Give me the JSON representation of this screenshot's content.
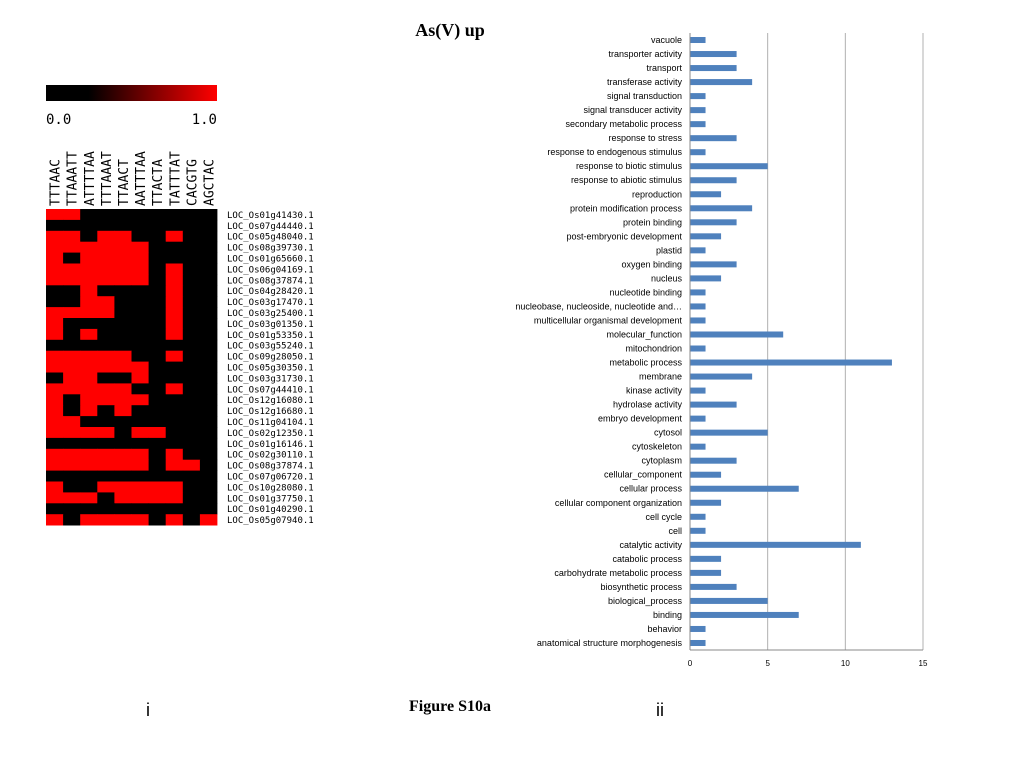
{
  "title": "As(V) up",
  "figure_label": "Figure S10a",
  "panel_labels": {
    "left": "i",
    "right": "ii"
  },
  "colors": {
    "bar": "#4f81bd",
    "high": "#ff0000",
    "low": "#000000",
    "grid": "#b0b0b0"
  },
  "chart_data": [
    {
      "type": "heatmap",
      "scale": {
        "min_label": "0.0",
        "max_label": "1.0",
        "min": 0,
        "max": 1
      },
      "columns": [
        "TTTAAC",
        "TTAAATT",
        "ATTTTAA",
        "TTTAAAT",
        "TTAACT",
        "AATTTAA",
        "TTACTA",
        "TATTTAT",
        "CACGTG",
        "AGCTAC"
      ],
      "rows": [
        "LOC_Os01g41430.1",
        "LOC_Os07g44440.1",
        "LOC_Os05g48040.1",
        "LOC_Os08g39730.1",
        "LOC_Os01g65660.1",
        "LOC_Os06g04169.1",
        "LOC_Os08g37874.1",
        "LOC_Os04g28420.1",
        "LOC_Os03g17470.1",
        "LOC_Os03g25400.1",
        "LOC_Os03g01350.1",
        "LOC_Os01g53350.1",
        "LOC_Os03g55240.1",
        "LOC_Os09g28050.1",
        "LOC_Os05g30350.1",
        "LOC_Os03g31730.1",
        "LOC_Os07g44410.1",
        "LOC_Os12g16080.1",
        "LOC_Os12g16680.1",
        "LOC_Os11g04104.1",
        "LOC_Os02g12350.1",
        "LOC_Os01g16146.1",
        "LOC_Os02g30110.1",
        "LOC_Os08g37874.1",
        "LOC_Os07g06720.1",
        "LOC_Os10g28080.1",
        "LOC_Os01g37750.1",
        "LOC_Os01g40290.1",
        "LOC_Os05g07940.1"
      ],
      "values": [
        [
          1,
          1,
          0,
          0,
          0,
          0,
          0,
          0,
          0,
          0
        ],
        [
          0,
          0,
          0,
          0,
          0,
          0,
          0,
          0,
          0,
          0
        ],
        [
          1,
          1,
          0,
          1,
          1,
          0,
          0,
          1,
          0,
          0
        ],
        [
          1,
          1,
          1,
          1,
          1,
          1,
          0,
          0,
          0,
          0
        ],
        [
          1,
          0,
          1,
          1,
          1,
          1,
          0,
          0,
          0,
          0
        ],
        [
          1,
          1,
          1,
          1,
          1,
          1,
          0,
          1,
          0,
          0
        ],
        [
          1,
          1,
          1,
          1,
          1,
          1,
          0,
          1,
          0,
          0
        ],
        [
          0,
          0,
          1,
          0,
          0,
          0,
          0,
          1,
          0,
          0
        ],
        [
          0,
          0,
          1,
          1,
          0,
          0,
          0,
          1,
          0,
          0
        ],
        [
          1,
          1,
          1,
          1,
          0,
          0,
          0,
          1,
          0,
          0
        ],
        [
          1,
          0,
          0,
          0,
          0,
          0,
          0,
          1,
          0,
          0
        ],
        [
          1,
          0,
          1,
          0,
          0,
          0,
          0,
          1,
          0,
          0
        ],
        [
          0,
          0,
          0,
          0,
          0,
          0,
          0,
          0,
          0,
          0
        ],
        [
          1,
          1,
          1,
          1,
          1,
          0,
          0,
          1,
          0,
          0
        ],
        [
          1,
          1,
          1,
          1,
          1,
          1,
          0,
          0,
          0,
          0
        ],
        [
          0,
          1,
          1,
          0,
          0,
          1,
          0,
          0,
          0,
          0
        ],
        [
          1,
          1,
          1,
          1,
          1,
          0,
          0,
          1,
          0,
          0
        ],
        [
          1,
          0,
          1,
          1,
          1,
          1,
          0,
          0,
          0,
          0
        ],
        [
          1,
          0,
          1,
          0,
          1,
          0,
          0,
          0,
          0,
          0
        ],
        [
          1,
          1,
          0,
          0,
          0,
          0,
          0,
          0,
          0,
          0
        ],
        [
          1,
          1,
          1,
          1,
          0,
          1,
          1,
          0,
          0,
          0
        ],
        [
          0,
          0,
          0,
          0,
          0,
          0,
          0,
          0,
          0,
          0
        ],
        [
          1,
          1,
          1,
          1,
          1,
          1,
          0,
          1,
          0,
          0
        ],
        [
          1,
          1,
          1,
          1,
          1,
          1,
          0,
          1,
          1,
          0
        ],
        [
          0,
          0,
          0,
          0,
          0,
          0,
          0,
          0,
          0,
          0
        ],
        [
          1,
          0,
          0,
          1,
          1,
          1,
          1,
          1,
          0,
          0
        ],
        [
          1,
          1,
          1,
          0,
          1,
          1,
          1,
          1,
          0,
          0
        ],
        [
          0,
          0,
          0,
          0,
          0,
          0,
          0,
          0,
          0,
          0
        ],
        [
          1,
          0,
          1,
          1,
          1,
          1,
          0,
          1,
          0,
          1
        ]
      ]
    },
    {
      "type": "bar",
      "orientation": "horizontal",
      "categories": [
        "vacuole",
        "transporter activity",
        "transport",
        "transferase activity",
        "signal transduction",
        "signal transducer activity",
        "secondary metabolic process",
        "response to stress",
        "response to endogenous stimulus",
        "response to biotic stimulus",
        "response to abiotic stimulus",
        "reproduction",
        "protein modification process",
        "protein binding",
        "post-embryonic development",
        "plastid",
        "oxygen binding",
        "nucleus",
        "nucleotide binding",
        "nucleobase, nucleoside, nucleotide and…",
        "multicellular organismal development",
        "molecular_function",
        "mitochondrion",
        "metabolic process",
        "membrane",
        "kinase activity",
        "hydrolase activity",
        "embryo development",
        "cytosol",
        "cytoskeleton",
        "cytoplasm",
        "cellular_component",
        "cellular process",
        "cellular component organization",
        "cell cycle",
        "cell",
        "catalytic activity",
        "catabolic process",
        "carbohydrate metabolic process",
        "biosynthetic process",
        "biological_process",
        "binding",
        "behavior",
        "anatomical structure morphogenesis"
      ],
      "values": [
        1,
        3,
        3,
        4,
        1,
        1,
        1,
        3,
        1,
        5,
        3,
        2,
        4,
        3,
        2,
        1,
        3,
        2,
        1,
        1,
        1,
        6,
        1,
        13,
        4,
        1,
        3,
        1,
        5,
        1,
        3,
        2,
        7,
        2,
        1,
        1,
        11,
        2,
        2,
        3,
        5,
        7,
        1,
        1
      ],
      "xlim": [
        0,
        15
      ],
      "xticks": [
        "0",
        "5",
        "10",
        "15"
      ],
      "grid": true
    }
  ]
}
